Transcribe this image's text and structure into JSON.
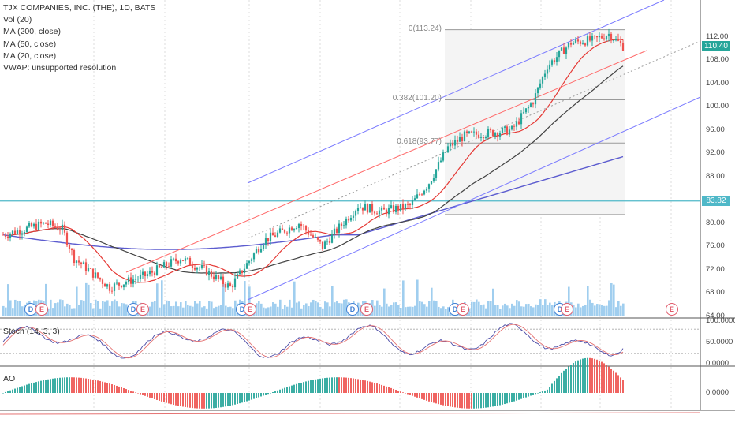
{
  "legend": {
    "symbol": "TJX COMPANIES, INC. (THE), 1D, BATS",
    "vol": "Vol (20)",
    "ma200": "MA (200, close)",
    "ma50": "MA (50, close)",
    "ma20": "MA (20, close)",
    "vwap": "VWAP: unsupported resolution"
  },
  "fib_levels": [
    {
      "label": "0(113.24)",
      "price": 113.24
    },
    {
      "label": "0.382(101.20)",
      "price": 101.2
    },
    {
      "label": "0.618(93.77)",
      "price": 93.77
    },
    {
      "label": "",
      "price": 81.5
    }
  ],
  "price_axis": {
    "ticks": [
      "112.00",
      "108.00",
      "104.00",
      "100.00",
      "96.00",
      "92.00",
      "88.00",
      "84.00",
      "80.00",
      "76.00",
      "72.00",
      "68.00",
      "64.00"
    ],
    "last_price": "110.40",
    "hline_price": "83.82"
  },
  "stoch": {
    "label": "Stoch (14, 3, 3)",
    "ticks": [
      "100.0000",
      "50.0000",
      "0.0000"
    ]
  },
  "ao": {
    "label": "AO",
    "ticks": [
      "0.0000"
    ]
  },
  "events": [
    {
      "letter": "D",
      "kind": "dividend"
    },
    {
      "letter": "E",
      "kind": "earnings"
    },
    {
      "letter": "D",
      "kind": "dividend"
    },
    {
      "letter": "E",
      "kind": "earnings"
    },
    {
      "letter": "D",
      "kind": "dividend"
    },
    {
      "letter": "E",
      "kind": "earnings"
    },
    {
      "letter": "D",
      "kind": "dividend"
    },
    {
      "letter": "E",
      "kind": "earnings"
    },
    {
      "letter": "D",
      "kind": "dividend"
    },
    {
      "letter": "E",
      "kind": "earnings"
    },
    {
      "letter": "D",
      "kind": "dividend"
    },
    {
      "letter": "E",
      "kind": "earnings"
    },
    {
      "letter": "E",
      "kind": "earnings"
    }
  ],
  "colors": {
    "up": "#26a69a",
    "down": "#ef5350",
    "ma20": "#e53935",
    "ma50": "#424242",
    "ma200": "#5c5ccf",
    "channel": "#7b7bff",
    "channel_mid": "#ff6b6b",
    "hline": "#4fb8c8",
    "volume": "#8fc6ec",
    "fib_box": "#f4f4f4"
  },
  "chart_data": {
    "type": "candlestick",
    "title": "TJX COMPANIES, INC. (THE), 1D, BATS",
    "ylim": [
      64,
      114
    ],
    "waypoints": [
      [
        0,
        78
      ],
      [
        18,
        80
      ],
      [
        25,
        79
      ],
      [
        30,
        74
      ],
      [
        45,
        69
      ],
      [
        60,
        71
      ],
      [
        75,
        74
      ],
      [
        85,
        72
      ],
      [
        96,
        69
      ],
      [
        110,
        77
      ],
      [
        125,
        80
      ],
      [
        135,
        76
      ],
      [
        150,
        83
      ],
      [
        160,
        82
      ],
      [
        172,
        83
      ],
      [
        180,
        87
      ],
      [
        188,
        93
      ],
      [
        195,
        95
      ],
      [
        215,
        96
      ],
      [
        224,
        101
      ],
      [
        230,
        107
      ],
      [
        240,
        111
      ],
      [
        250,
        111.5
      ],
      [
        256,
        112.5
      ],
      [
        262,
        110.4
      ]
    ],
    "last_close": 110.4,
    "hline": 83.82
  }
}
